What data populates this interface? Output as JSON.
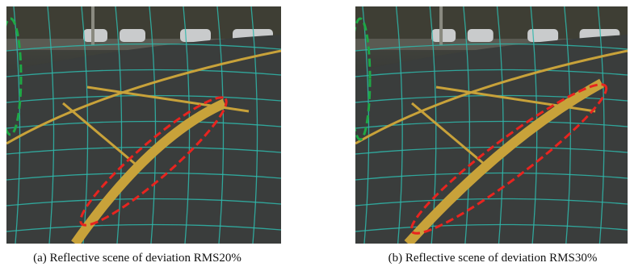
{
  "figure": {
    "panels": [
      {
        "caption": "(a) Reflective scene of deviation RMS20%"
      },
      {
        "caption": "(b) Reflective scene of deviation RMS30%"
      }
    ]
  }
}
